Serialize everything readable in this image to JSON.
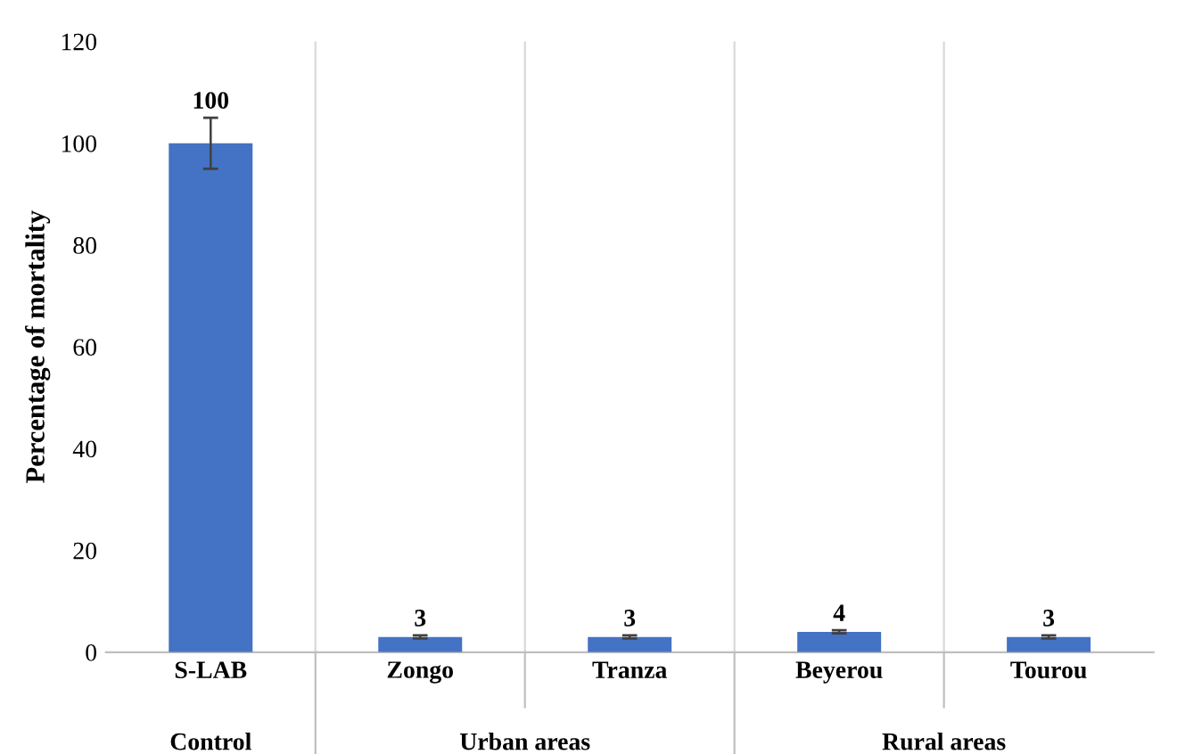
{
  "chart_data": {
    "type": "bar",
    "ylabel": "Percentage of mortality",
    "categories": [
      "S-LAB",
      "Zongo",
      "Tranza",
      "Beyerou",
      "Tourou"
    ],
    "values": [
      100,
      3,
      3,
      4,
      3
    ],
    "errors": [
      5,
      0.3,
      0.3,
      0.3,
      0.3
    ],
    "color": "#4472c4",
    "ylim": [
      0,
      120
    ],
    "yticks": [
      0,
      20,
      40,
      60,
      80,
      100,
      120
    ],
    "grid": "x",
    "data_labels": true,
    "annotations": [
      "Control",
      "Urban areas",
      "Rural areas"
    ]
  }
}
